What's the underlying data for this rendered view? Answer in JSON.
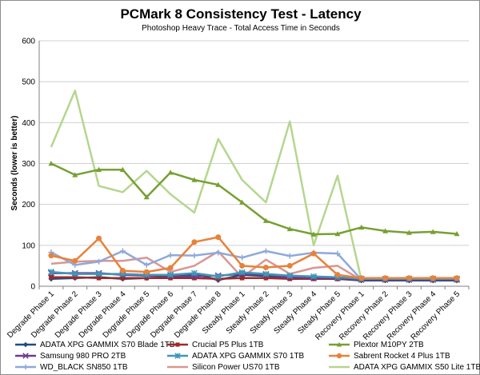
{
  "chart_data": {
    "type": "line",
    "title": "PCMark 8 Consistency Test - Latency",
    "subtitle": "Photoshop Heavy Trace - Total Access Time in Seconds",
    "xlabel": "",
    "ylabel": "Seconds (lower is better)",
    "ylim": [
      0,
      600
    ],
    "yticks": [
      "0",
      "100",
      "200",
      "300",
      "400",
      "500",
      "600"
    ],
    "grid": true,
    "legend_position": "bottom",
    "categories": [
      "Degrade Phase 1",
      "Degrade Phase 2",
      "Degrade Phase 3",
      "Degrade Phase 4",
      "Degrade Phase 5",
      "Degrade Phase 6",
      "Degrade Phase 7",
      "Degrade Phase 8",
      "Steady Phase 1",
      "Steady Phase 2",
      "Steady Phase 3",
      "Steady Phase 4",
      "Steady Phase 5",
      "Recovery Phase 1",
      "Recovery Phase 2",
      "Recovery Phase 3",
      "Recovery Phase 4",
      "Recovery Phase 5"
    ],
    "series": [
      {
        "name": "ADATA XPG GAMMIX S70 Blade 1TB",
        "color": "#1f4e79",
        "marker": "diamond",
        "values": [
          18,
          20,
          22,
          18,
          20,
          22,
          30,
          15,
          28,
          25,
          20,
          22,
          18,
          14,
          14,
          14,
          14,
          14
        ]
      },
      {
        "name": "Crucial P5 Plus 1TB",
        "color": "#9e2a2b",
        "marker": "square",
        "values": [
          22,
          22,
          20,
          20,
          20,
          20,
          20,
          18,
          20,
          20,
          18,
          18,
          18,
          16,
          16,
          16,
          16,
          16
        ]
      },
      {
        "name": "Plextor M10PY 2TB",
        "color": "#77a033",
        "marker": "triangle",
        "values": [
          300,
          272,
          285,
          285,
          218,
          278,
          260,
          248,
          205,
          160,
          140,
          127,
          128,
          144,
          135,
          131,
          133,
          128
        ]
      },
      {
        "name": "Samsung 980 PRO 2TB",
        "color": "#6a3d8f",
        "marker": "x",
        "values": [
          32,
          32,
          32,
          28,
          26,
          25,
          24,
          26,
          30,
          28,
          22,
          20,
          20,
          16,
          16,
          16,
          16,
          16
        ]
      },
      {
        "name": "ADATA XPG GAMMIX S70 1TB",
        "color": "#3f97b8",
        "marker": "star",
        "values": [
          35,
          30,
          30,
          30,
          28,
          28,
          32,
          24,
          34,
          30,
          26,
          24,
          22,
          18,
          18,
          18,
          18,
          18
        ]
      },
      {
        "name": "Sabrent Rocket 4 Plus 1TB",
        "color": "#e8823a",
        "marker": "circle",
        "values": [
          75,
          62,
          117,
          38,
          35,
          45,
          108,
          120,
          50,
          46,
          50,
          80,
          28,
          20,
          20,
          20,
          20,
          20
        ]
      },
      {
        "name": "WD_BLACK SN850 1TB",
        "color": "#8fa9d8",
        "marker": "plus",
        "values": [
          83,
          52,
          60,
          86,
          52,
          76,
          75,
          82,
          70,
          86,
          74,
          82,
          80,
          16,
          16,
          16,
          16,
          16
        ]
      },
      {
        "name": "Silicon Power US70 1TB",
        "color": "#d99694",
        "marker": "none",
        "values": [
          55,
          60,
          62,
          62,
          70,
          35,
          50,
          85,
          22,
          65,
          30,
          45,
          50,
          15,
          15,
          15,
          15,
          15
        ]
      },
      {
        "name": "ADATA XPG GAMMIX S50 Lite 1TB",
        "color": "#b5d68f",
        "marker": "none",
        "values": [
          340,
          478,
          245,
          230,
          282,
          225,
          180,
          360,
          260,
          205,
          403,
          100,
          270,
          15,
          15,
          15,
          15,
          15
        ]
      }
    ]
  }
}
